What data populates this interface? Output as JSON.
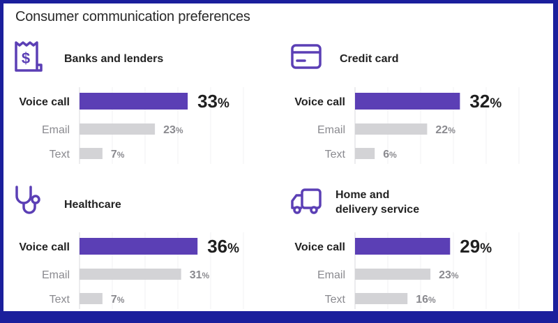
{
  "title": "Consumer communication preferences",
  "colors": {
    "primary": "#5b3fb5",
    "secondary": "#d3d3d6",
    "border": "#1b1f9c"
  },
  "chart_data": [
    {
      "type": "bar",
      "orientation": "horizontal",
      "title": "Banks and lenders",
      "icon": "receipt-dollar-icon",
      "categories": [
        "Voice call",
        "Email",
        "Text"
      ],
      "values": [
        33,
        23,
        7
      ],
      "labels": [
        "33",
        "23",
        "7"
      ],
      "unit": "%",
      "grid": true
    },
    {
      "type": "bar",
      "orientation": "horizontal",
      "title": "Credit card",
      "icon": "credit-card-icon",
      "categories": [
        "Voice call",
        "Email",
        "Text"
      ],
      "values": [
        32,
        22,
        6
      ],
      "labels": [
        "32",
        "22",
        "6"
      ],
      "unit": "%",
      "grid": true
    },
    {
      "type": "bar",
      "orientation": "horizontal",
      "title": "Healthcare",
      "icon": "stethoscope-icon",
      "categories": [
        "Voice call",
        "Email",
        "Text"
      ],
      "values": [
        36,
        31,
        7
      ],
      "labels": [
        "36",
        "31",
        "7"
      ],
      "unit": "%",
      "grid": true
    },
    {
      "type": "bar",
      "orientation": "horizontal",
      "title": "Home and delivery service",
      "title_lines": [
        "Home and",
        "delivery service"
      ],
      "icon": "delivery-truck-icon",
      "categories": [
        "Voice call",
        "Email",
        "Text"
      ],
      "values": [
        29,
        23,
        16
      ],
      "labels": [
        "29",
        "23",
        "16"
      ],
      "unit": "%",
      "grid": true
    }
  ]
}
